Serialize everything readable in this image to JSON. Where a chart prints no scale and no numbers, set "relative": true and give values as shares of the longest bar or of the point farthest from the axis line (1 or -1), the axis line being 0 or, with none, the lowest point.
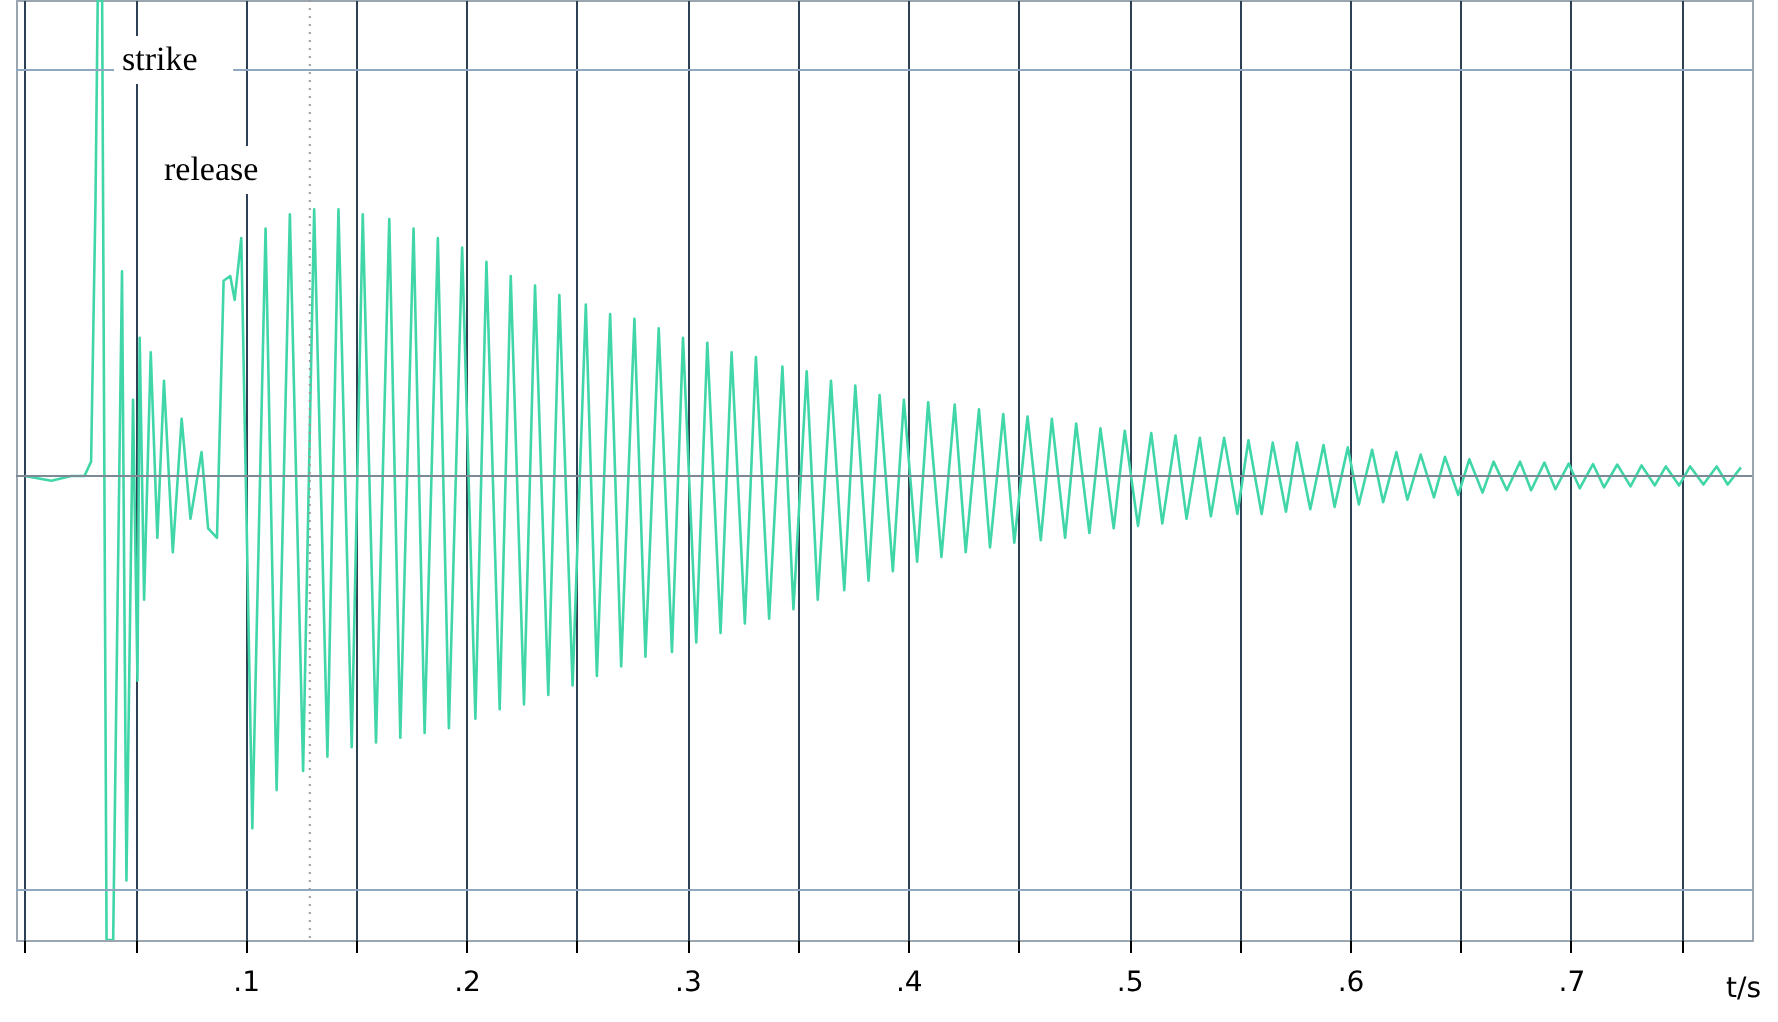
{
  "chart_data": {
    "type": "line",
    "relative": true,
    "xlabel": "t/s",
    "grid": "x",
    "tick_labels": "x",
    "xlim": [
      -0.004,
      0.782
    ],
    "xticks": [
      {
        "value": 0,
        "label": null
      },
      {
        "value": 0.05,
        "label": null
      },
      {
        "value": 0.1,
        "label": ".1"
      },
      {
        "value": 0.15,
        "label": null
      },
      {
        "value": 0.2,
        "label": ".2"
      },
      {
        "value": 0.25,
        "label": null
      },
      {
        "value": 0.3,
        "label": ".3"
      },
      {
        "value": 0.35,
        "label": null
      },
      {
        "value": 0.4,
        "label": ".4"
      },
      {
        "value": 0.45,
        "label": null
      },
      {
        "value": 0.5,
        "label": ".5"
      },
      {
        "value": 0.55,
        "label": null
      },
      {
        "value": 0.6,
        "label": ".6"
      },
      {
        "value": 0.65,
        "label": null
      },
      {
        "value": 0.7,
        "label": ".7"
      },
      {
        "value": 0.75,
        "label": null
      }
    ],
    "annotations": [
      "strike",
      "release"
    ],
    "ref_lines": [
      {
        "axis": "y",
        "value": 0.853,
        "label": null,
        "color": "#8fa8c0",
        "line_style": "solid"
      },
      {
        "axis": "y",
        "value": -0.87,
        "label": null,
        "color": "#8fa8c0",
        "line_style": "solid"
      },
      {
        "axis": "x",
        "value": 0.129,
        "label": null,
        "color": "#9a9a9a",
        "line_style": "dotted"
      }
    ],
    "x": [
      0,
      0.012,
      0.021,
      0.027,
      0.03,
      0.032,
      0.033,
      0.035,
      0.037,
      0.04,
      0.042,
      0.044,
      0.046,
      0.049,
      0.051,
      0.052,
      0.054,
      0.057,
      0.06,
      0.063,
      0.067,
      0.071,
      0.075,
      0.08,
      0.083,
      0.087,
      0.09,
      0.093,
      0.095,
      0.098,
      0.103,
      0.109,
      0.114,
      0.12,
      0.126,
      0.131,
      0.137,
      0.142,
      0.148,
      0.153,
      0.159,
      0.165,
      0.17,
      0.176,
      0.181,
      0.187,
      0.192,
      0.198,
      0.204,
      0.209,
      0.215,
      0.22,
      0.226,
      0.231,
      0.237,
      0.242,
      0.248,
      0.254,
      0.259,
      0.265,
      0.27,
      0.276,
      0.281,
      0.287,
      0.293,
      0.298,
      0.304,
      0.309,
      0.315,
      0.32,
      0.326,
      0.331,
      0.337,
      0.343,
      0.348,
      0.354,
      0.359,
      0.365,
      0.371,
      0.376,
      0.382,
      0.387,
      0.393,
      0.398,
      0.404,
      0.409,
      0.415,
      0.421,
      0.426,
      0.432,
      0.437,
      0.443,
      0.448,
      0.454,
      0.46,
      0.465,
      0.471,
      0.476,
      0.482,
      0.487,
      0.493,
      0.498,
      0.504,
      0.51,
      0.515,
      0.521,
      0.526,
      0.532,
      0.537,
      0.543,
      0.549,
      0.554,
      0.56,
      0.565,
      0.571,
      0.576,
      0.582,
      0.588,
      0.593,
      0.599,
      0.604,
      0.61,
      0.615,
      0.621,
      0.626,
      0.632,
      0.638,
      0.643,
      0.649,
      0.654,
      0.66,
      0.665,
      0.671,
      0.677,
      0.682,
      0.688,
      0.693,
      0.699,
      0.704,
      0.71,
      0.715,
      0.721,
      0.727,
      0.732,
      0.738,
      0.743,
      0.749,
      0.754,
      0.76,
      0.766,
      0.771,
      0.777
    ],
    "series": [
      {
        "color": "#40d6a8",
        "values": [
          0,
          -0.01,
          0,
          0,
          0.03,
          0.58,
          1,
          1,
          -0.975,
          -0.975,
          -0.26,
          0.43,
          -0.85,
          0.16,
          -0.43,
          0.29,
          -0.26,
          0.26,
          -0.13,
          0.2,
          -0.16,
          0.12,
          -0.09,
          0.05,
          -0.11,
          -0.13,
          0.41,
          0.42,
          0.37,
          0.5,
          -0.74,
          0.52,
          -0.66,
          0.55,
          -0.62,
          0.56,
          -0.59,
          0.56,
          -0.57,
          0.55,
          -0.56,
          0.54,
          -0.55,
          0.52,
          -0.54,
          0.5,
          -0.53,
          0.48,
          -0.51,
          0.45,
          -0.49,
          0.42,
          -0.48,
          0.4,
          -0.46,
          0.38,
          -0.44,
          0.36,
          -0.42,
          0.34,
          -0.4,
          0.33,
          -0.38,
          0.31,
          -0.37,
          0.29,
          -0.35,
          0.28,
          -0.33,
          0.26,
          -0.31,
          0.25,
          -0.3,
          0.23,
          -0.28,
          0.22,
          -0.26,
          0.2,
          -0.24,
          0.19,
          -0.22,
          0.17,
          -0.2,
          0.16,
          -0.18,
          0.155,
          -0.17,
          0.15,
          -0.16,
          0.14,
          -0.15,
          0.13,
          -0.14,
          0.125,
          -0.135,
          0.12,
          -0.13,
          0.11,
          -0.12,
          0.1,
          -0.11,
          0.095,
          -0.105,
          0.09,
          -0.1,
          0.085,
          -0.09,
          0.08,
          -0.085,
          0.08,
          -0.08,
          0.075,
          -0.08,
          0.07,
          -0.075,
          0.07,
          -0.07,
          0.065,
          -0.065,
          0.06,
          -0.06,
          0.055,
          -0.055,
          0.05,
          -0.05,
          0.045,
          -0.045,
          0.04,
          -0.04,
          0.035,
          -0.035,
          0.03,
          -0.03,
          0.03,
          -0.03,
          0.028,
          -0.028,
          0.026,
          -0.026,
          0.025,
          -0.024,
          0.024,
          -0.022,
          0.022,
          -0.02,
          0.02,
          -0.02,
          0.02,
          -0.018,
          0.02,
          -0.018,
          0.018
        ]
      }
    ]
  }
}
